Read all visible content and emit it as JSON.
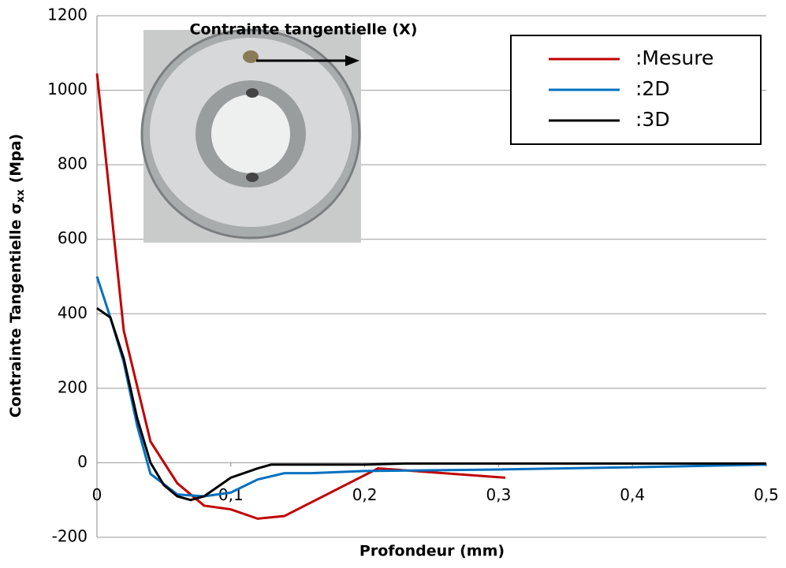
{
  "chart_data": {
    "type": "line",
    "annotation": "Contrainte tangentielle (X)",
    "xlabel": "Profondeur (mm)",
    "ylabel": {
      "text": "Contrainte Tangentielle σ",
      "subscript": "xx",
      "unit": "(Mpa)"
    },
    "xlim": [
      0,
      0.5
    ],
    "xticks": [
      0,
      {
        "value": 0.1,
        "label": "0,1"
      },
      {
        "value": 0.2,
        "label": "0,2"
      },
      {
        "value": 0.3,
        "label": "0,3"
      },
      {
        "value": 0.4,
        "label": "0,4"
      },
      {
        "value": 0.5,
        "label": "0,5"
      }
    ],
    "ylim": [
      -200,
      1200
    ],
    "yticks": [
      -200,
      0,
      200,
      400,
      600,
      800,
      1000,
      1200
    ],
    "grid": true,
    "legend": "upper right",
    "series": [
      {
        "name": ":Mesure",
        "color": "#c00000",
        "x": [
          0,
          0.02,
          0.04,
          0.06,
          0.08,
          0.1,
          0.12,
          0.14,
          0.21,
          0.305
        ],
        "values": [
          1045,
          355,
          57,
          -55,
          -115,
          -125,
          -150,
          -143,
          -15,
          -40
        ]
      },
      {
        "name": ":2D",
        "color": "#0070c0",
        "x": [
          0,
          0.01,
          0.02,
          0.03,
          0.04,
          0.06,
          0.08,
          0.1,
          0.12,
          0.14,
          0.16,
          0.2,
          0.3,
          0.4,
          0.5
        ],
        "values": [
          500,
          390,
          270,
          100,
          -30,
          -85,
          -90,
          -80,
          -45,
          -28,
          -28,
          -22,
          -18,
          -12,
          -5
        ]
      },
      {
        "name": ":3D",
        "color": "#000000",
        "x": [
          0,
          0.01,
          0.02,
          0.03,
          0.04,
          0.05,
          0.06,
          0.07,
          0.08,
          0.1,
          0.12,
          0.13,
          0.2,
          0.23,
          0.5
        ],
        "values": [
          415,
          390,
          280,
          120,
          0,
          -60,
          -90,
          -100,
          -90,
          -40,
          -15,
          -5,
          -5,
          -2,
          -2
        ]
      }
    ]
  }
}
